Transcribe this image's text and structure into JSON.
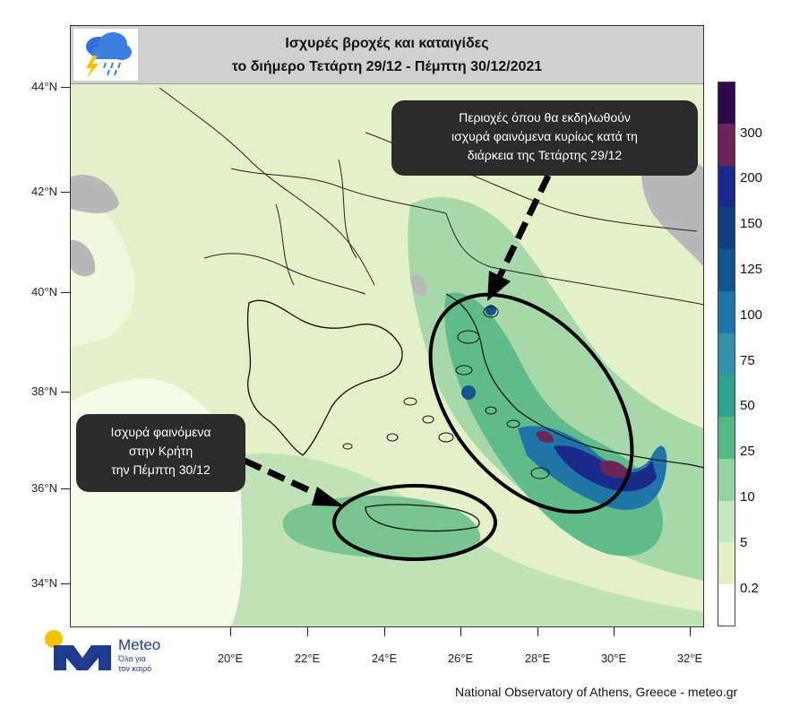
{
  "title": {
    "line1": "Ισχυρές βροχές και καταιγίδες",
    "line2": "το διήμερο Τετάρτη 29/12 - Πέμπτη 30/12/2021"
  },
  "latitude_labels": [
    "44°N",
    "42°N",
    "40°N",
    "38°N",
    "36°N",
    "34°N"
  ],
  "longitude_labels": [
    "20°E",
    "22°E",
    "24°E",
    "26°E",
    "28°E",
    "30°E",
    "32°E"
  ],
  "callouts": {
    "wednesday": {
      "line1": "Περιοχές όπου θα εκδηλωθούν",
      "line2": "ισχυρά φαινόμενα κυρίως κατά τη",
      "line3": "διάρκεια της Τετάρτης 29/12"
    },
    "crete": {
      "line1": "Ισχυρά φαινόμενα",
      "line2": "στην Κρήτη",
      "line3": "την Πέμπτη 30/12"
    }
  },
  "colorbar": {
    "labels": [
      "300",
      "200",
      "150",
      "125",
      "100",
      "75",
      "50",
      "25",
      "10",
      "5",
      "0.2"
    ],
    "colors": [
      "#2d0a4e",
      "#6b2458",
      "#1a2a8a",
      "#123e80",
      "#15558f",
      "#1f75a8",
      "#3591a8",
      "#2fa08a",
      "#57b887",
      "#93d3a2",
      "#c6e8c0",
      "#e2f0c6",
      "#ffffff"
    ]
  },
  "logo": {
    "brand": "Meteo",
    "tagline_1": "Όλα για",
    "tagline_2": "τον καιρό"
  },
  "footer": "National Observatory of Athens, Greece - meteo.gr",
  "icon": "storm-cloud-rain-icon"
}
